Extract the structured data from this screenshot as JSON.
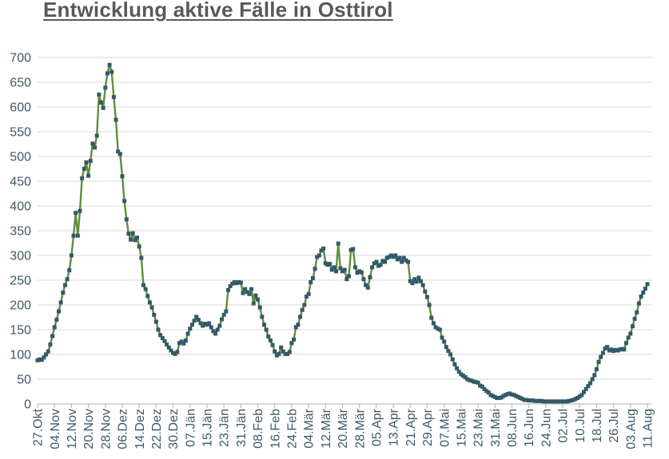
{
  "title": {
    "text": "Entwicklung aktive Fälle in Osttirol"
  },
  "colors": {
    "title": "#595959",
    "line": "#638c3c",
    "marker": "#315a68",
    "gridline": "#d9d9d9",
    "axis_line": "#bfbfbf",
    "axis_labels": "#3e5a64",
    "background": "#ffffff"
  },
  "chart_data": {
    "type": "line",
    "title": "Entwicklung aktive Fälle in Osttirol",
    "xlabel": "",
    "ylabel": "",
    "ylim": [
      0,
      700
    ],
    "y_ticks": [
      0,
      50,
      100,
      150,
      200,
      250,
      300,
      350,
      400,
      450,
      500,
      550,
      600,
      650,
      700
    ],
    "grid": "horizontal",
    "legend": "none",
    "marker": "square",
    "tick_every_days": 8,
    "x_tick_labels": [
      "27.Okt",
      "04.Nov",
      "12.Nov",
      "20.Nov",
      "28.Nov",
      "06.Dez",
      "14.Dez",
      "22.Dez",
      "30.Dez",
      "07.Jän",
      "15.Jän",
      "23.Jän",
      "31.Jän",
      "08.Feb",
      "16.Feb",
      "24.Feb",
      "04.Mär",
      "12.Mär",
      "20.Mär",
      "28.Mär",
      "05.Apr",
      "13.Apr",
      "21.Apr",
      "29.Apr",
      "07.Mai",
      "15.Mai",
      "23.Mai",
      "31.Mai",
      "08.Jun",
      "16.Jun",
      "24.Jun",
      "02.Jul",
      "10.Jul",
      "18.Jul",
      "26.Jul",
      "03.Aug",
      "11.Aug"
    ],
    "series": [
      {
        "name": "aktive Fälle",
        "values": [
          88,
          90,
          89,
          94,
          100,
          106,
          120,
          137,
          155,
          170,
          187,
          205,
          225,
          240,
          252,
          270,
          300,
          340,
          386,
          340,
          390,
          456,
          475,
          488,
          461,
          491,
          526,
          518,
          542,
          625,
          609,
          598,
          639,
          668,
          685,
          671,
          620,
          574,
          510,
          505,
          460,
          410,
          373,
          344,
          332,
          345,
          331,
          336,
          318,
          295,
          240,
          232,
          218,
          205,
          195,
          180,
          166,
          150,
          139,
          133,
          127,
          120,
          114,
          108,
          103,
          101,
          105,
          123,
          126,
          122,
          128,
          142,
          152,
          160,
          168,
          176,
          170,
          163,
          158,
          162,
          160,
          163,
          155,
          147,
          142,
          150,
          158,
          171,
          180,
          187,
          230,
          238,
          243,
          246,
          244,
          246,
          245,
          224,
          232,
          226,
          222,
          232,
          203,
          219,
          211,
          195,
          176,
          160,
          150,
          136,
          128,
          119,
          106,
          98,
          101,
          114,
          106,
          101,
          101,
          105,
          123,
          130,
          155,
          160,
          176,
          190,
          200,
          217,
          222,
          246,
          254,
          273,
          297,
          300,
          310,
          314,
          284,
          281,
          283,
          271,
          276,
          268,
          324,
          274,
          268,
          271,
          252,
          258,
          311,
          313,
          276,
          265,
          268,
          266,
          252,
          240,
          235,
          256,
          276,
          284,
          287,
          279,
          281,
          289,
          287,
          295,
          297,
          300,
          297,
          300,
          292,
          295,
          287,
          295,
          290,
          287,
          248,
          244,
          252,
          247,
          255,
          248,
          240,
          227,
          216,
          200,
          174,
          163,
          155,
          152,
          150,
          134,
          126,
          115,
          107,
          100,
          90,
          80,
          72,
          65,
          60,
          57,
          54,
          50,
          48,
          47,
          45,
          44,
          43,
          37,
          35,
          30,
          26,
          23,
          18,
          16,
          14,
          12,
          12,
          13,
          16,
          18,
          20,
          21,
          19,
          18,
          16,
          14,
          12,
          10,
          8,
          8,
          7,
          7,
          7,
          6,
          6,
          6,
          6,
          5,
          5,
          5,
          5,
          5,
          5,
          5,
          5,
          5,
          5,
          5,
          5,
          6,
          7,
          8,
          10,
          12,
          15,
          18,
          24,
          30,
          36,
          42,
          50,
          58,
          70,
          85,
          95,
          103,
          112,
          115,
          108,
          110,
          107,
          109,
          108,
          110,
          111,
          110,
          123,
          134,
          142,
          157,
          172,
          185,
          203,
          217,
          225,
          233,
          242
        ]
      }
    ]
  }
}
